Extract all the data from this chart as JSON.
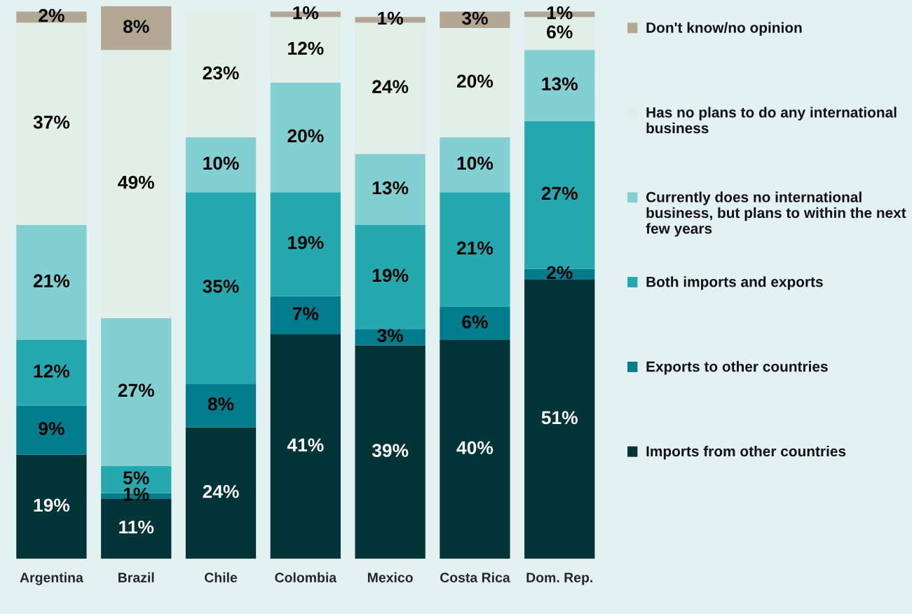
{
  "chart_data": {
    "type": "bar",
    "stacked": true,
    "legend": "right",
    "tick_labels": "x",
    "grid": false,
    "categories": [
      "Argentina",
      "Brazil",
      "Chile",
      "Colombia",
      "Mexico",
      "Costa Rica",
      "Dom. Rep."
    ],
    "series": [
      {
        "name": "Imports from other countries",
        "color": "#003436",
        "values": [
          19,
          11,
          24,
          41,
          39,
          40,
          51
        ],
        "value_labels": [
          "19%",
          "11%",
          "24%",
          "41%",
          "39%",
          "40%",
          "51%"
        ]
      },
      {
        "name": "Exports to other countries",
        "color": "#007c8c",
        "values": [
          9,
          1,
          8,
          7,
          3,
          6,
          2
        ],
        "value_labels": [
          "9%",
          "1%",
          "8%",
          "7%",
          "3%",
          "6%",
          "2%"
        ]
      },
      {
        "name": "Both imports and exports",
        "color": "#26a9ae",
        "values": [
          12,
          5,
          35,
          19,
          19,
          21,
          27
        ],
        "value_labels": [
          "12%",
          "5%",
          "35%",
          "19%",
          "19%",
          "21%",
          "27%"
        ]
      },
      {
        "name": "Currently does no international business, but plans to within the next few years",
        "color": "#82d0d2",
        "values": [
          21,
          27,
          10,
          20,
          13,
          10,
          13
        ],
        "value_labels": [
          "21%",
          "27%",
          "10%",
          "20%",
          "13%",
          "10%",
          "13%"
        ]
      },
      {
        "name": "Has no plans to do any international business",
        "color": "#e1efe8",
        "values": [
          37,
          49,
          23,
          12,
          24,
          20,
          6
        ],
        "value_labels": [
          "37%",
          "49%",
          "23%",
          "12%",
          "24%",
          "20%",
          "6%"
        ]
      },
      {
        "name": "Don't know/no opinion",
        "color": "#b3a692",
        "values": [
          2,
          8,
          null,
          1,
          1,
          3,
          1
        ],
        "value_labels": [
          "2%",
          "8%",
          null,
          "1%",
          "1%",
          "3%",
          "1%"
        ]
      }
    ]
  }
}
